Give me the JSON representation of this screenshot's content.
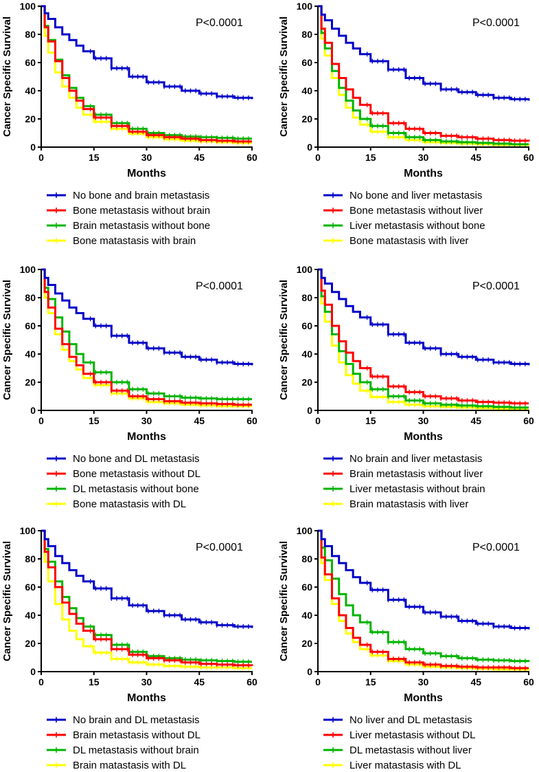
{
  "figure": {
    "background": "#ffffff"
  },
  "colors": {
    "blue": "#0000c8",
    "red": "#ff0000",
    "green": "#00b400",
    "yellow": "#ffff00",
    "axis": "#000000"
  },
  "chart_data": [
    {
      "type": "line",
      "step": true,
      "title": "",
      "p_value": "P<0.0001",
      "xlabel": "Months",
      "ylabel": "Cancer Specific Survival",
      "xlim": [
        0,
        60
      ],
      "ylim": [
        0,
        100
      ],
      "xticks": [
        0,
        15,
        30,
        45,
        60
      ],
      "yticks": [
        0,
        20,
        40,
        60,
        80,
        100
      ],
      "x": [
        0,
        1,
        2,
        4,
        6,
        8,
        10,
        12,
        15,
        20,
        25,
        30,
        35,
        40,
        45,
        50,
        55,
        60
      ],
      "series": [
        {
          "name": "No bone and brain metastasis",
          "color": "blue",
          "values": [
            100,
            95,
            91,
            85,
            80,
            76,
            72,
            68,
            63,
            56,
            50,
            46,
            43,
            40,
            38,
            36,
            35,
            34
          ]
        },
        {
          "name": "Bone metastasis without brain",
          "color": "red",
          "values": [
            100,
            85,
            75,
            61,
            49,
            40,
            33,
            27,
            21,
            15,
            11,
            8.5,
            7,
            6,
            5,
            4.5,
            4,
            4
          ]
        },
        {
          "name": "Brain metastasis without bone",
          "color": "green",
          "values": [
            100,
            86,
            76,
            62,
            51,
            42,
            35,
            29,
            23,
            17,
            13,
            10,
            8.5,
            7.5,
            7,
            6.5,
            6,
            6
          ]
        },
        {
          "name": "Bone matastasis with brain",
          "color": "yellow",
          "values": [
            100,
            79,
            67,
            53,
            43,
            35,
            28,
            23,
            18,
            13,
            9.5,
            7,
            5.5,
            4.5,
            4,
            3.5,
            3,
            3
          ]
        }
      ]
    },
    {
      "type": "line",
      "step": true,
      "title": "",
      "p_value": "P<0.0001",
      "xlabel": "Months",
      "ylabel": "Cancer Specific Survival",
      "xlim": [
        0,
        60
      ],
      "ylim": [
        0,
        100
      ],
      "xticks": [
        0,
        15,
        30,
        45,
        60
      ],
      "yticks": [
        0,
        20,
        40,
        60,
        80,
        100
      ],
      "x": [
        0,
        1,
        2,
        4,
        6,
        8,
        10,
        12,
        15,
        20,
        25,
        30,
        35,
        40,
        45,
        50,
        55,
        60
      ],
      "series": [
        {
          "name": "No bone and liver metastasis",
          "color": "blue",
          "values": [
            100,
            94,
            90,
            84,
            79,
            74,
            70,
            66,
            61,
            55,
            49,
            45,
            41,
            39,
            37,
            35,
            34,
            33
          ]
        },
        {
          "name": "Bone metastasis without liver",
          "color": "red",
          "values": [
            100,
            84,
            74,
            59,
            49,
            41,
            35,
            30,
            24,
            17,
            13,
            10,
            8,
            7,
            6,
            5,
            4.5,
            4
          ]
        },
        {
          "name": "Liver metastasis without bone",
          "color": "green",
          "values": [
            100,
            81,
            70,
            54,
            42,
            33,
            26,
            20,
            15,
            10,
            7,
            5,
            4,
            3.5,
            3,
            2.5,
            2,
            2
          ]
        },
        {
          "name": "Bone matastasis with liver",
          "color": "yellow",
          "values": [
            100,
            77,
            65,
            49,
            37,
            28,
            21,
            16,
            11,
            7,
            5,
            3.5,
            3,
            2.5,
            2,
            1.5,
            1.5,
            1
          ]
        }
      ]
    },
    {
      "type": "line",
      "step": true,
      "title": "",
      "p_value": "P<0.0001",
      "xlabel": "Months",
      "ylabel": "Cancer Specific Survival",
      "xlim": [
        0,
        60
      ],
      "ylim": [
        0,
        100
      ],
      "xticks": [
        0,
        15,
        30,
        45,
        60
      ],
      "yticks": [
        0,
        20,
        40,
        60,
        80,
        100
      ],
      "x": [
        0,
        1,
        2,
        4,
        6,
        8,
        10,
        12,
        15,
        20,
        25,
        30,
        35,
        40,
        45,
        50,
        55,
        60
      ],
      "series": [
        {
          "name": "No bone and DL metastasis",
          "color": "blue",
          "values": [
            100,
            94,
            89,
            83,
            78,
            73,
            69,
            65,
            60,
            53,
            48,
            44,
            41,
            38,
            36,
            34,
            33,
            32
          ]
        },
        {
          "name": "Bone metastasis without DL",
          "color": "red",
          "values": [
            100,
            84,
            73,
            58,
            47,
            38,
            32,
            26,
            20,
            14,
            10,
            8,
            6.5,
            5.5,
            5,
            4.5,
            4,
            4
          ]
        },
        {
          "name": "DL metastasis without bone",
          "color": "green",
          "values": [
            100,
            87,
            79,
            66,
            56,
            47,
            40,
            34,
            27,
            20,
            15,
            12,
            10,
            9,
            8.5,
            8,
            8,
            8
          ]
        },
        {
          "name": "Bone matastasis with DL",
          "color": "yellow",
          "values": [
            100,
            80,
            69,
            54,
            43,
            35,
            29,
            23,
            18,
            12,
            8.5,
            6,
            5,
            4,
            3.5,
            3,
            3,
            3
          ]
        }
      ]
    },
    {
      "type": "line",
      "step": true,
      "title": "",
      "p_value": "P<0.0001",
      "xlabel": "Months",
      "ylabel": "Cancer Specific Survival",
      "xlim": [
        0,
        60
      ],
      "ylim": [
        0,
        100
      ],
      "xticks": [
        0,
        15,
        30,
        45,
        60
      ],
      "yticks": [
        0,
        20,
        40,
        60,
        80,
        100
      ],
      "x": [
        0,
        1,
        2,
        4,
        6,
        8,
        10,
        12,
        15,
        20,
        25,
        30,
        35,
        40,
        45,
        50,
        55,
        60
      ],
      "series": [
        {
          "name": "No brain and liver metastasis",
          "color": "blue",
          "values": [
            100,
            94,
            90,
            84,
            79,
            74,
            70,
            66,
            61,
            54,
            48,
            44,
            40,
            38,
            36,
            34,
            33,
            32
          ]
        },
        {
          "name": "Brain metastasis without liver",
          "color": "red",
          "values": [
            100,
            85,
            75,
            60,
            49,
            41,
            35,
            30,
            24,
            17,
            13,
            10,
            8.5,
            7,
            6,
            5.5,
            5,
            5
          ]
        },
        {
          "name": "Liver metastasis without brain",
          "color": "green",
          "values": [
            100,
            81,
            70,
            54,
            42,
            33,
            26,
            20,
            15,
            10,
            7,
            5,
            4,
            3.5,
            3,
            2.5,
            2,
            2
          ]
        },
        {
          "name": "Brain matastasis with liver",
          "color": "yellow",
          "values": [
            100,
            76,
            63,
            46,
            34,
            25,
            19,
            14,
            9.5,
            6,
            4,
            3,
            2.5,
            2,
            1.5,
            1,
            1,
            1
          ]
        }
      ]
    },
    {
      "type": "line",
      "step": true,
      "title": "",
      "p_value": "P<0.0001",
      "xlabel": "Months",
      "ylabel": "Cancer Specific Survival",
      "xlim": [
        0,
        60
      ],
      "ylim": [
        0,
        100
      ],
      "xticks": [
        0,
        15,
        30,
        45,
        60
      ],
      "yticks": [
        0,
        20,
        40,
        60,
        80,
        100
      ],
      "x": [
        0,
        1,
        2,
        4,
        6,
        8,
        10,
        12,
        15,
        20,
        25,
        30,
        35,
        40,
        45,
        50,
        55,
        60
      ],
      "series": [
        {
          "name": "No brain and DL metastasis",
          "color": "blue",
          "values": [
            100,
            94,
            89,
            82,
            77,
            72,
            68,
            64,
            59,
            52,
            47,
            43,
            40,
            37,
            35,
            33,
            32,
            31
          ]
        },
        {
          "name": "Brain metastasis without DL",
          "color": "red",
          "values": [
            100,
            85,
            74,
            60,
            49,
            41,
            34,
            29,
            23,
            16,
            12,
            9.5,
            8,
            6.5,
            5.5,
            5,
            4.5,
            4
          ]
        },
        {
          "name": "DL metastasis without brain",
          "color": "green",
          "values": [
            100,
            87,
            78,
            64,
            53,
            45,
            38,
            32,
            26,
            19,
            14,
            11,
            9.5,
            8.5,
            8,
            7.5,
            7,
            7
          ]
        },
        {
          "name": "Brain matastasis with DL",
          "color": "yellow",
          "values": [
            100,
            78,
            64,
            48,
            37,
            29,
            23,
            18,
            13.5,
            9,
            6.5,
            5,
            4,
            3.5,
            3,
            3,
            2.5,
            2.5
          ]
        }
      ]
    },
    {
      "type": "line",
      "step": true,
      "title": "",
      "p_value": "P<0.0001",
      "xlabel": "Months",
      "ylabel": "Cancer Specific Survival",
      "xlim": [
        0,
        60
      ],
      "ylim": [
        0,
        100
      ],
      "xticks": [
        0,
        15,
        30,
        45,
        60
      ],
      "yticks": [
        0,
        20,
        40,
        60,
        80,
        100
      ],
      "x": [
        0,
        1,
        2,
        4,
        6,
        8,
        10,
        12,
        15,
        20,
        25,
        30,
        35,
        40,
        45,
        50,
        55,
        60
      ],
      "series": [
        {
          "name": "No liver and DL metastasis",
          "color": "blue",
          "values": [
            100,
            94,
            89,
            82,
            77,
            72,
            67,
            63,
            58,
            51,
            46,
            42,
            39,
            36,
            34,
            32,
            31,
            30
          ]
        },
        {
          "name": "Liver metastasis without DL",
          "color": "red",
          "values": [
            100,
            81,
            69,
            52,
            40,
            31,
            24,
            19,
            14,
            9,
            6.5,
            5,
            4,
            3.5,
            3,
            3,
            2.5,
            2.5
          ]
        },
        {
          "name": "DL metastasis without liver",
          "color": "green",
          "values": [
            100,
            88,
            79,
            66,
            55,
            47,
            40,
            35,
            28,
            21,
            16,
            13,
            11,
            9.5,
            8.5,
            8,
            7.5,
            7
          ]
        },
        {
          "name": "Liver matastasis with DL",
          "color": "yellow",
          "values": [
            100,
            77,
            65,
            48,
            36,
            27,
            21,
            16,
            11.5,
            7.5,
            5,
            3.5,
            3,
            2.5,
            2,
            1.5,
            1.5,
            1
          ]
        }
      ]
    }
  ]
}
